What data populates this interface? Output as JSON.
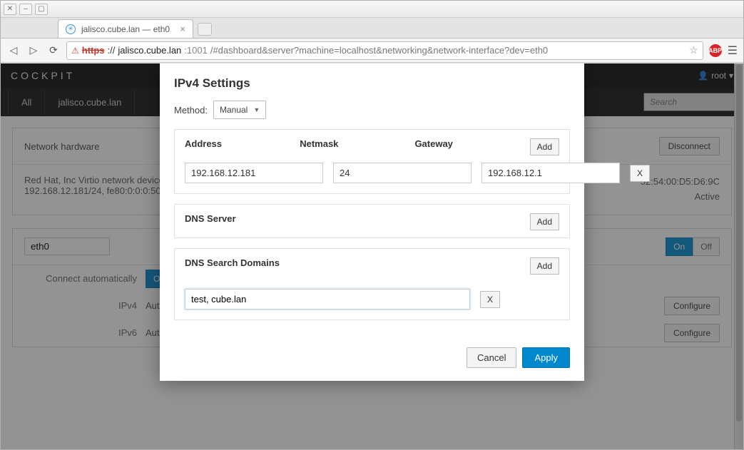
{
  "browser": {
    "tab_title": "jalisco.cube.lan — eth0",
    "url_scheme": "https",
    "url_host": "jalisco.cube.lan",
    "url_port": ":1001",
    "url_path": "/#dashboard&server?machine=localhost&networking&network-interface?dev=eth0"
  },
  "header": {
    "brand": "COCKPIT",
    "user": "root"
  },
  "nav": {
    "tabs": [
      "All",
      "jalisco.cube.lan"
    ],
    "search_placeholder": "Search"
  },
  "hardware_panel": {
    "title": "Network hardware",
    "device": "Red Hat, Inc Virtio network device",
    "addresses": "192.168.12.181/24, fe80:0:0:0:5054",
    "mac": "52:54:00:D5:D6:9C",
    "status": "Active",
    "disconnect": "Disconnect"
  },
  "iface_panel": {
    "name": "eth0",
    "on": "On",
    "off": "Off",
    "rows": [
      {
        "label": "Connect automatically",
        "value": "",
        "onoff": true
      },
      {
        "label": "IPv4",
        "value": "Automa"
      },
      {
        "label": "IPv6",
        "value": "Automa"
      }
    ],
    "configure": "Configure"
  },
  "modal": {
    "title": "IPv4 Settings",
    "method_label": "Method:",
    "method_value": "Manual",
    "addr_section": {
      "cols": [
        "Address",
        "Netmask",
        "Gateway"
      ],
      "add": "Add",
      "rows": [
        {
          "address": "192.168.12.181",
          "netmask": "24",
          "gateway": "192.168.12.1"
        }
      ],
      "del": "X"
    },
    "dns_section": {
      "title": "DNS Server",
      "add": "Add"
    },
    "search_section": {
      "title": "DNS Search Domains",
      "add": "Add",
      "value": "test, cube.lan",
      "del": "X"
    },
    "cancel": "Cancel",
    "apply": "Apply"
  },
  "colors": {
    "primary": "#0088ce",
    "dark": "#0a0a0a"
  }
}
